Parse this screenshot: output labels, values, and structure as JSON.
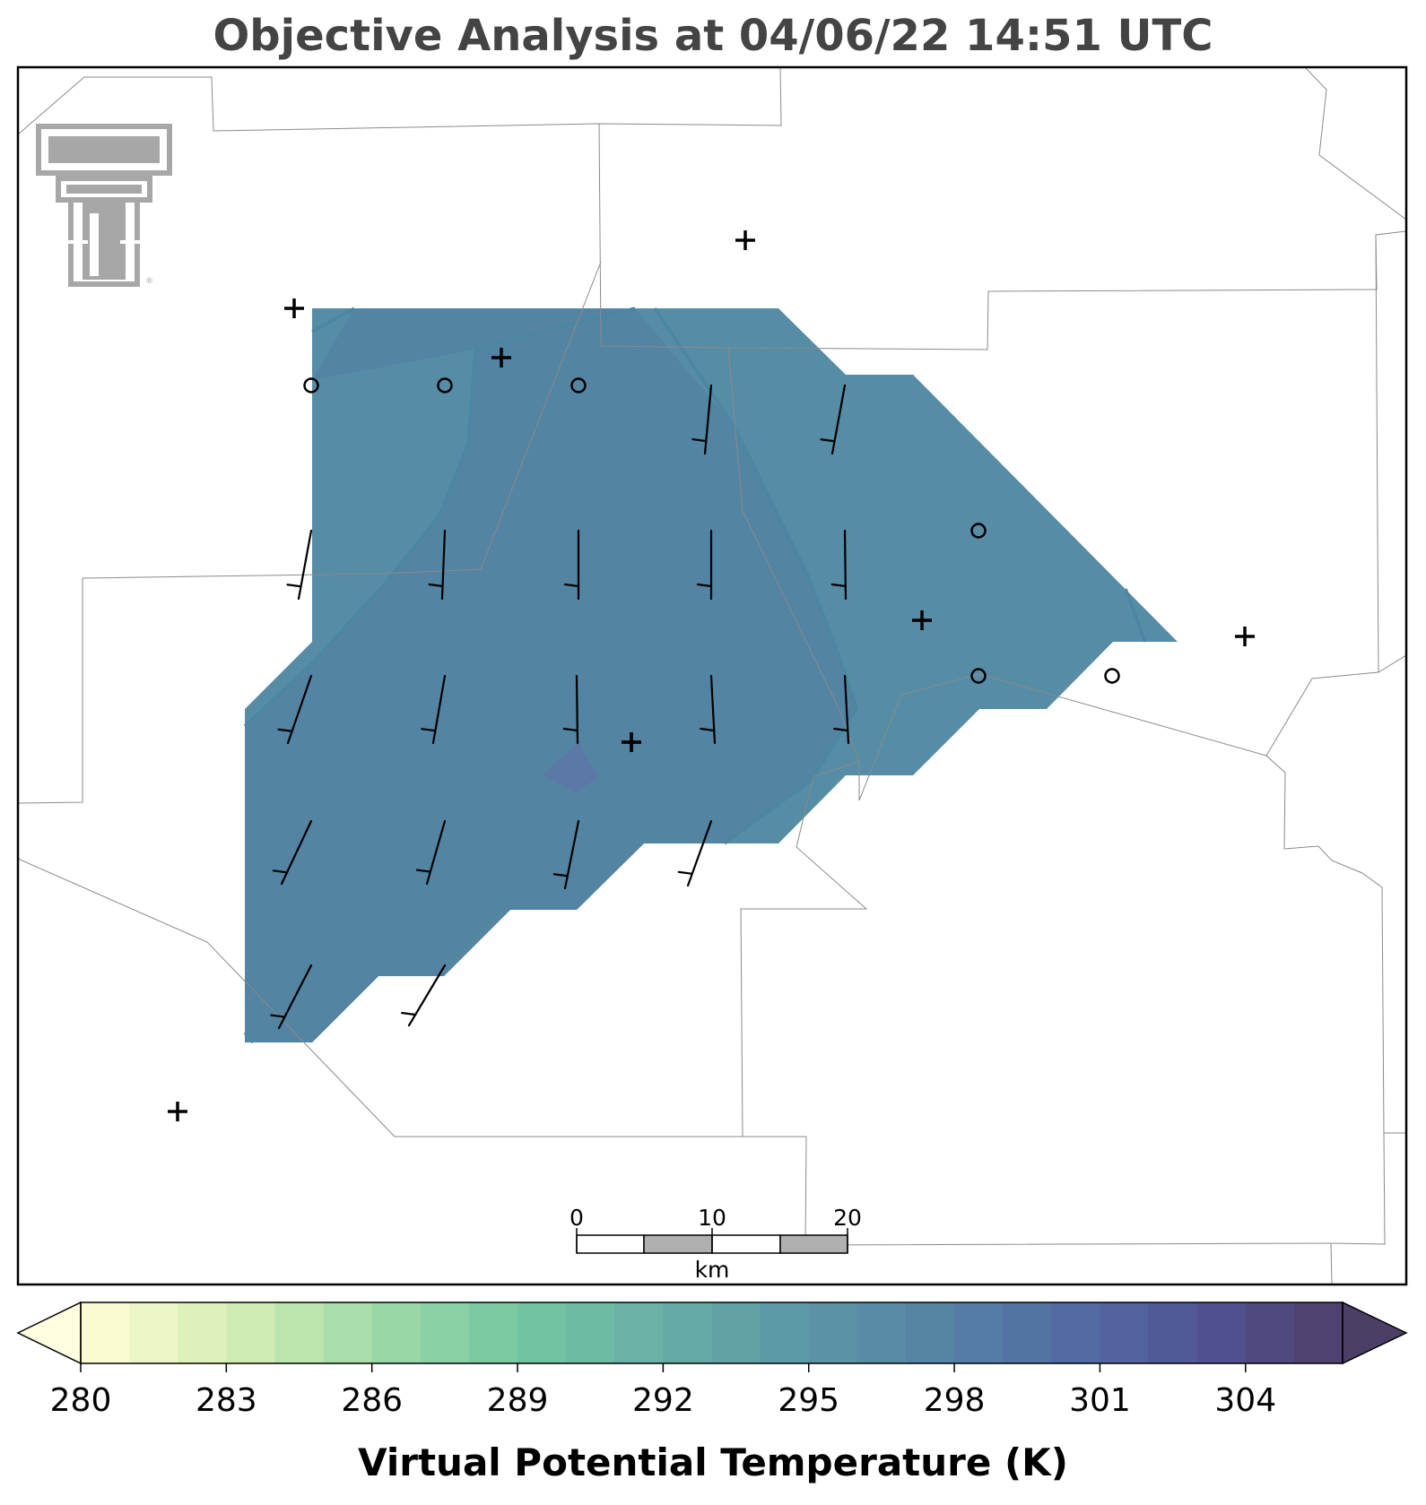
{
  "title": "Objective Analysis at 04/06/22 14:51 UTC",
  "colorbar": {
    "label": "Virtual Potential Temperature (K)",
    "ticks": [
      "280",
      "283",
      "286",
      "289",
      "292",
      "295",
      "298",
      "301",
      "304"
    ],
    "min": 280,
    "max": 306,
    "extend": "both",
    "colormap": "crest-reversed (light yellow to dark indigo)"
  },
  "scale_bar": {
    "labels": [
      "0",
      "10",
      "20"
    ],
    "unit": "km"
  },
  "logo": {
    "name": "texas-tech-double-t-logo",
    "color": "#a0a0a0"
  },
  "field_colors": {
    "value_296": "#578ca6",
    "value_297": "#5384a3",
    "value_298": "#5c78a6"
  },
  "stations": {
    "plus_markers": 8,
    "calm_markers": 7
  },
  "chart_data": {
    "type": "contour-map",
    "variable": "Virtual Potential Temperature",
    "units": "K",
    "analyzed_range": [
      296,
      298
    ],
    "wind_barbs": "southerly to south-southwesterly, about 5-10 kt"
  }
}
